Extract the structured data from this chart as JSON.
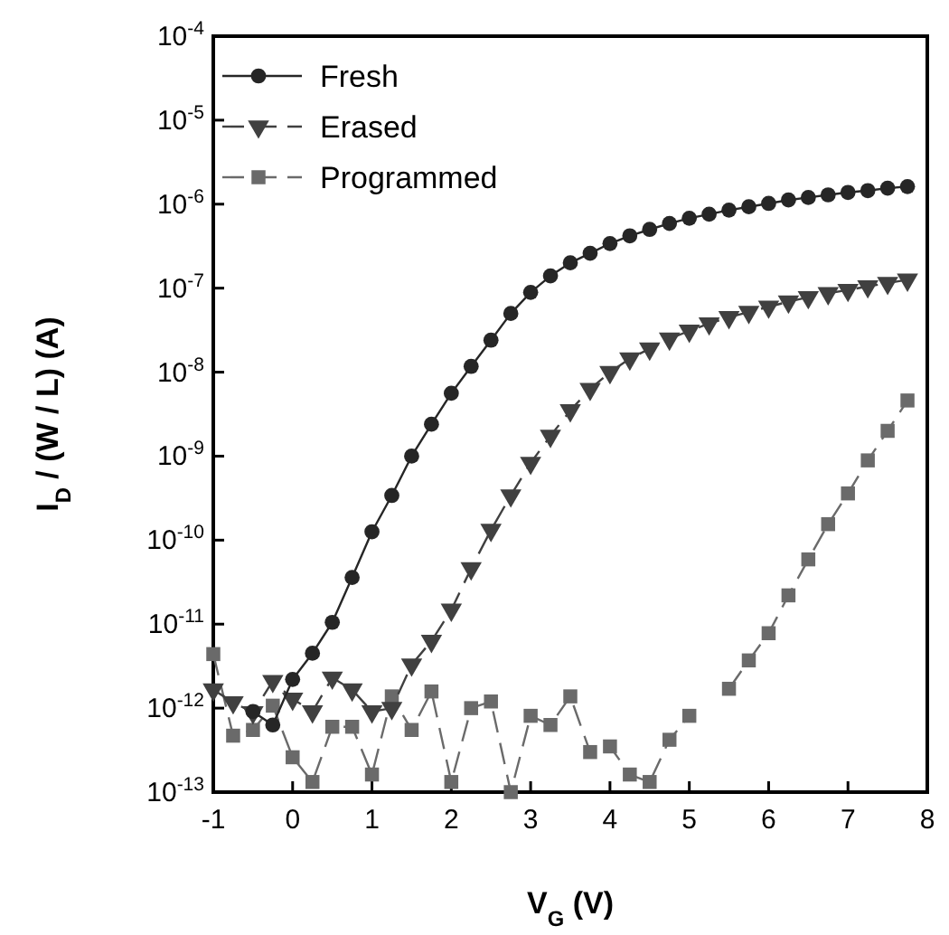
{
  "chart_data": {
    "type": "line",
    "xlabel": "V$_{G}$ (V)",
    "ylabel": "I$_{D}$ / (W / L) (A)",
    "log": "y",
    "xlim": [
      -1,
      8
    ],
    "xticks": [
      -1,
      0,
      1,
      2,
      3,
      4,
      5,
      6,
      7,
      8
    ],
    "ylim": [
      1e-13,
      0.0001
    ],
    "yticks": [
      {
        "value": 1e-13,
        "label": "10$^{-13}$"
      },
      {
        "value": 1e-12,
        "label": "10$^{-12}$"
      },
      {
        "value": 1e-11,
        "label": "10$^{-11}$"
      },
      {
        "value": 1e-10,
        "label": "10$^{-10}$"
      },
      {
        "value": 1e-09,
        "label": "10$^{-9}$"
      },
      {
        "value": 1e-08,
        "label": "10$^{-8}$"
      },
      {
        "value": 1e-07,
        "label": "10$^{-7}$"
      },
      {
        "value": 1e-06,
        "label": "10$^{-6}$"
      },
      {
        "value": 1e-05,
        "label": "10$^{-5}$"
      },
      {
        "value": 0.0001,
        "label": "10$^{-4}$"
      }
    ],
    "grid": false,
    "legend": "top left",
    "series": [
      {
        "name": "Fresh",
        "color": "#262626",
        "marker": "circle",
        "line_style": "solid",
        "x": [
          -0.5,
          -0.25,
          0,
          0.25,
          0.5,
          0.75,
          1,
          1.25,
          1.5,
          1.75,
          2,
          2.25,
          2.5,
          2.75,
          3,
          3.25,
          3.5,
          3.75,
          4,
          4.25,
          4.5,
          4.75,
          5,
          5.25,
          5.5,
          5.75,
          6,
          6.25,
          6.5,
          6.75,
          7,
          7.25,
          7.5,
          7.75
        ],
        "values": [
          9.1e-13,
          6.3e-13,
          2.2e-12,
          4.5e-12,
          1.05e-11,
          3.6e-11,
          1.26e-10,
          3.4e-10,
          1e-09,
          2.4e-09,
          5.6e-09,
          1.17e-08,
          2.4e-08,
          5e-08,
          8.9e-08,
          1.4e-07,
          2e-07,
          2.6e-07,
          3.4e-07,
          4.2e-07,
          5e-07,
          5.9e-07,
          6.8e-07,
          7.6e-07,
          8.5e-07,
          9.3e-07,
          1.02e-06,
          1.12e-06,
          1.2e-06,
          1.29e-06,
          1.38e-06,
          1.45e-06,
          1.55e-06,
          1.62e-06
        ]
      },
      {
        "name": "Erased",
        "color": "#404040",
        "marker": "triangle",
        "line_style": "dashed",
        "x": [
          -1,
          -0.75,
          -0.5,
          -0.25,
          0,
          0.25,
          0.5,
          0.75,
          1,
          1.25,
          1.5,
          1.75,
          2,
          2.25,
          2.5,
          2.75,
          3,
          3.25,
          3.5,
          3.75,
          4,
          4.25,
          4.5,
          4.75,
          5,
          5.25,
          5.5,
          5.75,
          6,
          6.25,
          6.5,
          6.75,
          7,
          7.25,
          7.5,
          7.75
        ],
        "values": [
          1.66e-12,
          1.17e-12,
          8.9e-13,
          2.1e-12,
          1.29e-12,
          9.1e-13,
          2.3e-12,
          1.66e-12,
          9.1e-13,
          1e-12,
          3.3e-12,
          6.3e-12,
          1.48e-11,
          4.6e-11,
          1.32e-10,
          3.4e-10,
          8.3e-10,
          1.74e-09,
          3.5e-09,
          6.3e-09,
          1e-08,
          1.45e-08,
          1.9e-08,
          2.5e-08,
          3.1e-08,
          3.8e-08,
          4.5e-08,
          5.2e-08,
          6e-08,
          6.9e-08,
          7.8e-08,
          8.7e-08,
          9.5e-08,
          1.05e-07,
          1.15e-07,
          1.26e-07
        ]
      },
      {
        "name": "Programmed",
        "color": "#6a6a6a",
        "marker": "square",
        "line_style": "dashed",
        "x": [
          -1,
          -0.75,
          -0.5,
          -0.25,
          0,
          0.25,
          0.5,
          0.75,
          1,
          1.25,
          1.5,
          1.75,
          2,
          2.25,
          2.5,
          2.75,
          3,
          3.25,
          3.5,
          3.75,
          4,
          4.25,
          4.5,
          4.75,
          5,
          5.25,
          5.5,
          5.75,
          6,
          6.25,
          6.5,
          6.75,
          7,
          7.25,
          7.5,
          7.75
        ],
        "values": [
          4.4e-12,
          4.7e-13,
          5.5e-13,
          1.07e-12,
          2.6e-13,
          1.32e-13,
          6e-13,
          6e-13,
          1.62e-13,
          1.38e-12,
          5.5e-13,
          1.58e-12,
          1.32e-13,
          1e-12,
          1.2e-12,
          1e-13,
          8.1e-13,
          6.3e-13,
          1.38e-12,
          3e-13,
          3.5e-13,
          1.62e-13,
          1.32e-13,
          4.2e-13,
          8.1e-13,
          null,
          1.7e-12,
          3.7e-12,
          7.8e-12,
          2.2e-11,
          5.9e-11,
          1.55e-10,
          3.6e-10,
          8.9e-10,
          2e-09,
          4.6e-09
        ]
      }
    ]
  }
}
